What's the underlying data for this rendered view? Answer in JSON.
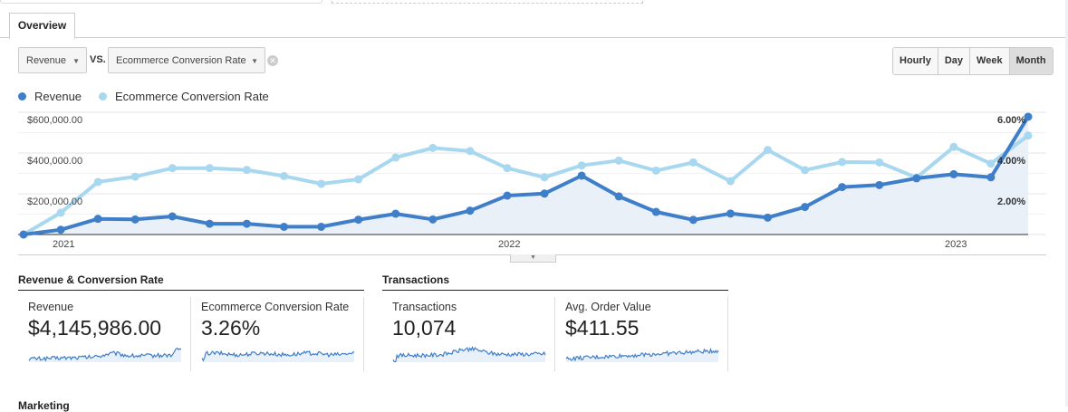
{
  "tabs": [
    {
      "label": "Overview",
      "active": true
    }
  ],
  "metric_selector": {
    "primary": "Revenue",
    "vs_label": "VS.",
    "secondary": "Ecommerce Conversion Rate"
  },
  "granularity": {
    "options": [
      "Hourly",
      "Day",
      "Week",
      "Month"
    ],
    "selected": "Month"
  },
  "legend": [
    {
      "label": "Revenue",
      "color": "#3f7fca"
    },
    {
      "label": "Ecommerce Conversion Rate",
      "color": "#a8d7f0"
    }
  ],
  "chart_data": {
    "type": "line",
    "x_ticks": [
      "2021",
      "2022",
      "2023"
    ],
    "x": [
      "2020-12",
      "2021-01",
      "2021-02",
      "2021-03",
      "2021-04",
      "2021-05",
      "2021-06",
      "2021-07",
      "2021-08",
      "2021-09",
      "2021-10",
      "2021-11",
      "2021-12",
      "2022-01",
      "2022-02",
      "2022-03",
      "2022-04",
      "2022-05",
      "2022-06",
      "2022-07",
      "2022-08",
      "2022-09",
      "2022-10",
      "2022-11",
      "2022-12",
      "2023-01",
      "2023-02",
      "2023-03"
    ],
    "left_axis": {
      "ticks": [
        "$200,000.00",
        "$400,000.00",
        "$600,000.00"
      ],
      "range": [
        0,
        600000
      ]
    },
    "right_axis": {
      "ticks": [
        "2.00%",
        "4.00%",
        "6.00%"
      ],
      "range": [
        0,
        6
      ]
    },
    "grid": true,
    "legend_position": "top-left",
    "series": [
      {
        "name": "Revenue",
        "axis": "left",
        "color": "#3f7fca",
        "area": true,
        "values": [
          0,
          23500,
          77000,
          74000,
          89000,
          53000,
          53000,
          38000,
          38000,
          73000,
          102000,
          74000,
          117000,
          191000,
          201000,
          289000,
          187000,
          111000,
          72000,
          103000,
          83000,
          135000,
          233000,
          243000,
          276000,
          296000,
          281000,
          578000
        ]
      },
      {
        "name": "Ecommerce Conversion Rate",
        "axis": "right",
        "color": "#a8d7f0",
        "values": [
          0,
          1.07,
          2.58,
          2.84,
          3.26,
          3.26,
          3.17,
          2.87,
          2.49,
          2.71,
          3.78,
          4.25,
          4.1,
          3.26,
          2.81,
          3.39,
          3.63,
          3.14,
          3.54,
          2.62,
          4.15,
          3.16,
          3.56,
          3.54,
          2.79,
          4.3,
          3.48,
          4.86
        ]
      }
    ]
  },
  "sections": [
    {
      "title": "Revenue & Conversion Rate",
      "cards": [
        {
          "label": "Revenue",
          "value": "$4,145,986.00"
        },
        {
          "label": "Ecommerce Conversion Rate",
          "value": "3.26%"
        }
      ]
    },
    {
      "title": "Transactions",
      "cards": [
        {
          "label": "Transactions",
          "value": "10,074"
        },
        {
          "label": "Avg. Order Value",
          "value": "$411.55"
        }
      ]
    }
  ],
  "next_section": "Marketing"
}
